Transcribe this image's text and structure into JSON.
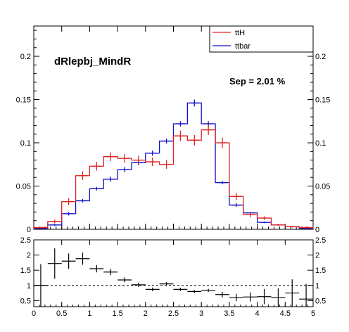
{
  "chart_data": [
    {
      "type": "histogram",
      "panel": "main",
      "title": "dRlepbj_MindR",
      "annotation": "Sep = 2.01 %",
      "x_edges": [
        0,
        0.25,
        0.5,
        0.75,
        1.0,
        1.25,
        1.5,
        1.75,
        2.0,
        2.25,
        2.5,
        2.75,
        3.0,
        3.25,
        3.5,
        3.75,
        4.0,
        4.25,
        4.5,
        4.75,
        5.0
      ],
      "xlim": [
        0,
        5
      ],
      "ylim": [
        0,
        0.235
      ],
      "x_ticks": [
        "0",
        "0.5",
        "1",
        "1.5",
        "2",
        "2.5",
        "3",
        "3.5",
        "4",
        "4.5",
        "5"
      ],
      "y_ticks": [
        "0",
        "0.05",
        "0.1",
        "0.15",
        "0.2"
      ],
      "legend_position": "top-right",
      "series": [
        {
          "name": "ttH",
          "color": "#dd2222",
          "values": [
            0.002,
            0.009,
            0.032,
            0.062,
            0.073,
            0.084,
            0.082,
            0.08,
            0.078,
            0.075,
            0.108,
            0.103,
            0.115,
            0.1,
            0.038,
            0.017,
            0.013,
            0.005,
            0.003,
            0.002
          ],
          "errors": [
            0.001,
            0.002,
            0.004,
            0.005,
            0.005,
            0.005,
            0.005,
            0.005,
            0.005,
            0.005,
            0.006,
            0.006,
            0.006,
            0.006,
            0.004,
            0.003,
            0.002,
            0.001,
            0.001,
            0.001
          ]
        },
        {
          "name": "ttbar",
          "color": "#1111cc",
          "values": [
            0.001,
            0.005,
            0.018,
            0.033,
            0.047,
            0.058,
            0.069,
            0.077,
            0.088,
            0.102,
            0.122,
            0.146,
            0.122,
            0.054,
            0.028,
            0.019,
            0.008,
            0.005,
            0.003,
            0.001
          ],
          "errors": [
            0.0005,
            0.001,
            0.002,
            0.002,
            0.002,
            0.003,
            0.003,
            0.003,
            0.003,
            0.003,
            0.003,
            0.004,
            0.003,
            0.002,
            0.002,
            0.001,
            0.001,
            0.001,
            0.0005,
            0.0005
          ]
        }
      ]
    },
    {
      "type": "scatter",
      "panel": "ratio",
      "x_centers": [
        0.125,
        0.375,
        0.625,
        0.875,
        1.125,
        1.375,
        1.625,
        1.875,
        2.125,
        2.375,
        2.625,
        2.875,
        3.125,
        3.375,
        3.625,
        3.875,
        4.125,
        4.375,
        4.625,
        4.875
      ],
      "values": [
        1.0,
        1.72,
        1.8,
        1.88,
        1.55,
        1.44,
        1.18,
        1.02,
        0.87,
        1.05,
        0.87,
        0.8,
        0.84,
        0.7,
        0.6,
        0.62,
        0.63,
        0.6,
        0.75,
        0.55
      ],
      "y_errors": [
        0.7,
        0.5,
        0.25,
        0.2,
        0.12,
        0.1,
        0.08,
        0.07,
        0.06,
        0.06,
        0.05,
        0.05,
        0.05,
        0.09,
        0.12,
        0.15,
        0.25,
        0.3,
        0.45,
        0.5
      ],
      "xlim": [
        0,
        5
      ],
      "ylim": [
        0.3,
        2.5
      ],
      "reference_line": 1,
      "x_ticks": [
        "0",
        "0.5",
        "1",
        "1.5",
        "2",
        "2.5",
        "3",
        "3.5",
        "4",
        "4.5",
        "5"
      ],
      "y_ticks": [
        "0.5",
        "1",
        "1.5",
        "2",
        "2.5"
      ],
      "color": "#000000"
    }
  ]
}
